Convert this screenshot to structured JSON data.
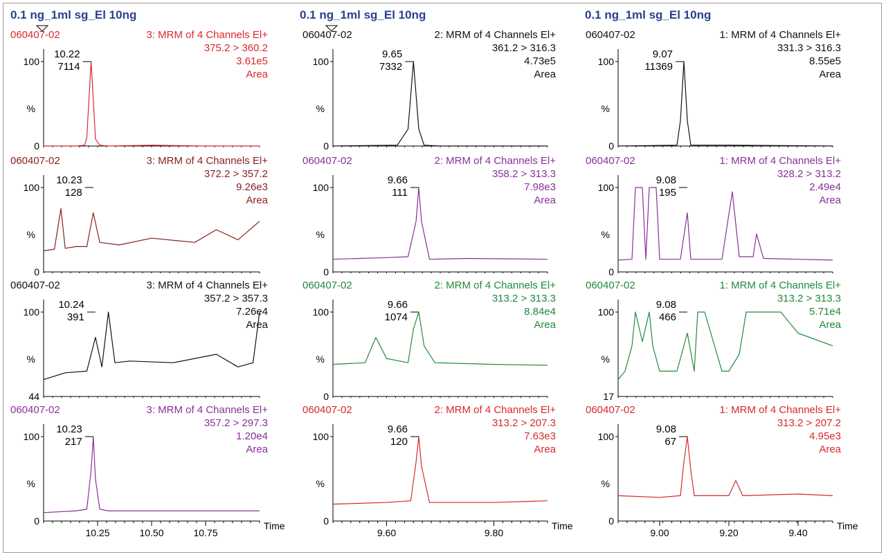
{
  "colors": {
    "title": "#2a3f8f",
    "red": "#d8282b",
    "darkred": "#8a1e1e",
    "black": "#111111",
    "purple": "#8a2f9a",
    "green": "#1f8a3d"
  },
  "time_label": "Time",
  "columns": [
    {
      "title": "0.1 ng_1ml sg_El 10ng",
      "x_range": [
        10.0,
        11.0
      ],
      "x_ticks": [
        {
          "v": 10.25,
          "label": "10.25"
        },
        {
          "v": 10.5,
          "label": "10.50"
        },
        {
          "v": 10.75,
          "label": "10.75"
        }
      ],
      "panels": [
        {
          "sample": "060407-02",
          "function": "3: MRM of 4 Channels El+",
          "transition": "375.2 > 360.2",
          "intensity": "3.61e5",
          "mode": "Area",
          "rt": "10.22",
          "peak_area": "7114",
          "color": "red",
          "sample_color": "red",
          "y_min_label": "0"
        },
        {
          "sample": "060407-02",
          "function": "3: MRM of 4 Channels El+",
          "transition": "372.2 > 357.2",
          "intensity": "9.26e3",
          "mode": "Area",
          "rt": "10.23",
          "peak_area": "128",
          "color": "darkred",
          "sample_color": "darkred",
          "y_min_label": "0"
        },
        {
          "sample": "060407-02",
          "function": "3: MRM of 4 Channels El+",
          "transition": "357.2 > 357.3",
          "intensity": "7.26e4",
          "mode": "Area",
          "rt": "10.24",
          "peak_area": "391",
          "color": "black",
          "sample_color": "black",
          "y_min_label": "44"
        },
        {
          "sample": "060407-02",
          "function": "3: MRM of 4 Channels El+",
          "transition": "357.2 > 297.3",
          "intensity": "1.20e4",
          "mode": "Area",
          "rt": "10.23",
          "peak_area": "217",
          "color": "purple",
          "sample_color": "purple",
          "y_min_label": "0"
        }
      ]
    },
    {
      "title": "0.1 ng_1ml sg_El 10ng",
      "x_range": [
        9.5,
        9.9
      ],
      "x_ticks": [
        {
          "v": 9.6,
          "label": "9.60"
        },
        {
          "v": 9.8,
          "label": "9.80"
        }
      ],
      "panels": [
        {
          "sample": "060407-02",
          "function": "2: MRM of 4 Channels El+",
          "transition": "361.2 > 316.3",
          "intensity": "4.73e5",
          "mode": "Area",
          "rt": "9.65",
          "peak_area": "7332",
          "color": "black",
          "sample_color": "black",
          "y_min_label": "0"
        },
        {
          "sample": "060407-02",
          "function": "2: MRM of 4 Channels El+",
          "transition": "358.2 > 313.3",
          "intensity": "7.98e3",
          "mode": "Area",
          "rt": "9.66",
          "peak_area": "111",
          "color": "purple",
          "sample_color": "purple",
          "y_min_label": "0"
        },
        {
          "sample": "060407-02",
          "function": "2: MRM of 4 Channels El+",
          "transition": "313.2 > 313.3",
          "intensity": "8.84e4",
          "mode": "Area",
          "rt": "9.66",
          "peak_area": "1074",
          "color": "green",
          "sample_color": "green",
          "y_min_label": "0"
        },
        {
          "sample": "060407-02",
          "function": "2: MRM of 4 Channels El+",
          "transition": "313.2 > 207.3",
          "intensity": "7.63e3",
          "mode": "Area",
          "rt": "9.66",
          "peak_area": "120",
          "color": "red",
          "sample_color": "red",
          "y_min_label": "0"
        }
      ]
    },
    {
      "title": "0.1 ng_1ml sg_El 10ng",
      "x_range": [
        8.88,
        9.5
      ],
      "x_ticks": [
        {
          "v": 9.0,
          "label": "9.00"
        },
        {
          "v": 9.2,
          "label": "9.20"
        },
        {
          "v": 9.4,
          "label": "9.40"
        }
      ],
      "panels": [
        {
          "sample": "060407-02",
          "function": "1: MRM of 4 Channels El+",
          "transition": "331.3 > 316.3",
          "intensity": "8.55e5",
          "mode": "Area",
          "rt": "9.07",
          "peak_area": "11369",
          "color": "black",
          "sample_color": "black",
          "y_min_label": "0"
        },
        {
          "sample": "060407-02",
          "function": "1: MRM of 4 Channels El+",
          "transition": "328.2 > 313.2",
          "intensity": "2.49e4",
          "mode": "Area",
          "rt": "9.08",
          "peak_area": "195",
          "color": "purple",
          "sample_color": "purple",
          "y_min_label": "0"
        },
        {
          "sample": "060407-02",
          "function": "1: MRM of 4 Channels El+",
          "transition": "313.2 > 313.3",
          "intensity": "5.71e4",
          "mode": "Area",
          "rt": "9.08",
          "peak_area": "466",
          "color": "green",
          "sample_color": "green",
          "y_min_label": "17"
        },
        {
          "sample": "060407-02",
          "function": "1: MRM of 4 Channels El+",
          "transition": "313.2 > 207.2",
          "intensity": "4.95e3",
          "mode": "Area",
          "rt": "9.08",
          "peak_area": "67",
          "color": "red",
          "sample_color": "red",
          "y_min_label": "0"
        }
      ]
    }
  ],
  "axis_text": {
    "y_max": "100",
    "y_mid": "%"
  },
  "chart_data": [
    {
      "type": "line",
      "title": "0.1 ng_1ml sg_El 10ng",
      "xlabel": "Time",
      "ylabel": "%",
      "xlim": [
        10.0,
        11.0
      ],
      "ylim": [
        0,
        100
      ],
      "series": [
        {
          "name": "375.2 > 360.2",
          "x": [
            10.0,
            10.15,
            10.19,
            10.2,
            10.21,
            10.22,
            10.23,
            10.24,
            10.26,
            10.3,
            10.5,
            10.75,
            11.0
          ],
          "y": [
            0,
            0,
            1,
            10,
            55,
            100,
            55,
            8,
            1,
            0,
            1,
            0,
            0
          ]
        },
        {
          "name": "372.2 > 357.2",
          "x": [
            10.0,
            10.05,
            10.08,
            10.1,
            10.15,
            10.2,
            10.23,
            10.26,
            10.35,
            10.5,
            10.7,
            10.8,
            10.9,
            11.0
          ],
          "y": [
            25,
            27,
            75,
            28,
            30,
            30,
            70,
            35,
            32,
            40,
            35,
            50,
            38,
            60
          ]
        },
        {
          "name": "357.2 > 357.3",
          "x": [
            10.0,
            10.1,
            10.2,
            10.24,
            10.27,
            10.3,
            10.33,
            10.4,
            10.6,
            10.8,
            10.9,
            10.97,
            11.0
          ],
          "y": [
            20,
            28,
            30,
            70,
            35,
            100,
            40,
            42,
            40,
            50,
            35,
            40,
            100
          ]
        },
        {
          "name": "357.2 > 297.3",
          "x": [
            10.0,
            10.15,
            10.2,
            10.22,
            10.23,
            10.24,
            10.26,
            10.3,
            10.6,
            11.0
          ],
          "y": [
            10,
            12,
            14,
            60,
            100,
            50,
            14,
            12,
            12,
            12
          ]
        }
      ]
    },
    {
      "type": "line",
      "title": "0.1 ng_1ml sg_El 10ng",
      "xlabel": "Time",
      "ylabel": "%",
      "xlim": [
        9.5,
        9.9
      ],
      "ylim": [
        0,
        100
      ],
      "series": [
        {
          "name": "361.2 > 316.3",
          "x": [
            9.5,
            9.62,
            9.64,
            9.65,
            9.66,
            9.67,
            9.7,
            9.9
          ],
          "y": [
            0,
            1,
            20,
            100,
            20,
            1,
            0,
            0
          ]
        },
        {
          "name": "358.2 > 313.3",
          "x": [
            9.5,
            9.6,
            9.64,
            9.655,
            9.66,
            9.665,
            9.68,
            9.75,
            9.9
          ],
          "y": [
            15,
            17,
            18,
            60,
            100,
            60,
            15,
            16,
            15
          ]
        },
        {
          "name": "313.2 > 313.3",
          "x": [
            9.5,
            9.56,
            9.58,
            9.6,
            9.64,
            9.65,
            9.66,
            9.67,
            9.69,
            9.8,
            9.9
          ],
          "y": [
            38,
            40,
            70,
            45,
            40,
            80,
            100,
            60,
            40,
            38,
            37
          ]
        },
        {
          "name": "313.2 > 207.3",
          "x": [
            9.5,
            9.6,
            9.645,
            9.655,
            9.66,
            9.665,
            9.68,
            9.8,
            9.9
          ],
          "y": [
            20,
            22,
            24,
            70,
            100,
            65,
            22,
            22,
            24
          ]
        }
      ]
    },
    {
      "type": "line",
      "title": "0.1 ng_1ml sg_El 10ng",
      "xlabel": "Time",
      "ylabel": "%",
      "xlim": [
        8.88,
        9.5
      ],
      "ylim": [
        0,
        100
      ],
      "series": [
        {
          "name": "331.3 > 316.3",
          "x": [
            8.88,
            9.05,
            9.06,
            9.07,
            9.08,
            9.09,
            9.2,
            9.5
          ],
          "y": [
            0,
            1,
            30,
            100,
            30,
            1,
            1,
            0
          ]
        },
        {
          "name": "328.2 > 313.2",
          "x": [
            8.88,
            8.92,
            8.93,
            8.95,
            8.96,
            8.97,
            8.99,
            9.0,
            9.06,
            9.08,
            9.09,
            9.18,
            9.21,
            9.23,
            9.27,
            9.28,
            9.3,
            9.5
          ],
          "y": [
            14,
            15,
            100,
            100,
            15,
            100,
            100,
            15,
            15,
            70,
            15,
            15,
            95,
            18,
            18,
            45,
            16,
            14
          ]
        },
        {
          "name": "313.2 > 313.3",
          "x": [
            8.88,
            8.9,
            8.92,
            8.93,
            8.95,
            8.97,
            8.98,
            9.0,
            9.05,
            9.08,
            9.1,
            9.11,
            9.13,
            9.18,
            9.2,
            9.23,
            9.25,
            9.3,
            9.35,
            9.4,
            9.5
          ],
          "y": [
            20,
            30,
            60,
            100,
            65,
            100,
            60,
            30,
            30,
            75,
            30,
            100,
            100,
            30,
            30,
            50,
            100,
            100,
            100,
            75,
            60
          ]
        },
        {
          "name": "313.2 > 207.2",
          "x": [
            8.88,
            9.0,
            9.06,
            9.07,
            9.08,
            9.09,
            9.1,
            9.2,
            9.22,
            9.24,
            9.4,
            9.5
          ],
          "y": [
            30,
            28,
            30,
            70,
            100,
            60,
            30,
            30,
            48,
            30,
            32,
            30
          ]
        }
      ]
    }
  ]
}
